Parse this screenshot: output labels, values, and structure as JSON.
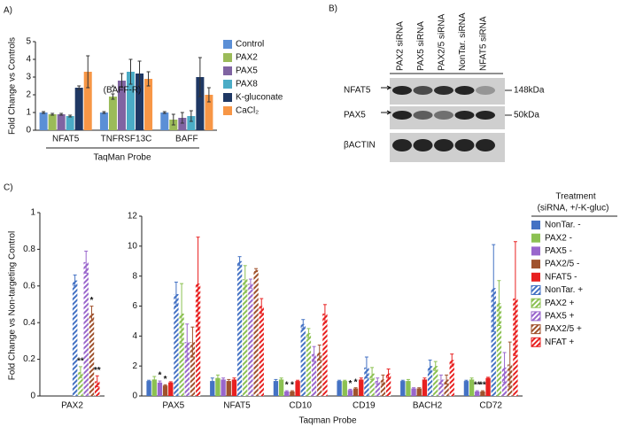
{
  "chart_data": [
    {
      "type": "bar",
      "label": "A)",
      "ylabel": "Fold Change vs Controls",
      "xlabel": "TaqMan Probe",
      "annotation": "(BAFF-R)",
      "categories": [
        "NFAT5",
        "TNFRSF13C",
        "BAFF"
      ],
      "ylim": [
        0,
        5
      ],
      "yticks": [
        0,
        1,
        2,
        3,
        4,
        5
      ],
      "series": [
        {
          "name": "Control",
          "color": "#5b8fd6",
          "values": [
            1.0,
            1.0,
            1.0
          ],
          "errors": [
            0.05,
            0.05,
            0.05
          ]
        },
        {
          "name": "PAX2",
          "color": "#9bbb59",
          "values": [
            0.9,
            1.9,
            0.6
          ],
          "errors": [
            0.05,
            0.15,
            0.3
          ],
          "stars": [
            null,
            "*",
            null
          ]
        },
        {
          "name": "PAX5",
          "color": "#8064a2",
          "values": [
            0.9,
            2.8,
            0.7
          ],
          "errors": [
            0.05,
            0.4,
            0.3
          ]
        },
        {
          "name": "PAX8",
          "color": "#4bacc6",
          "values": [
            0.8,
            3.3,
            0.8
          ],
          "errors": [
            0.05,
            0.7,
            0.3
          ]
        },
        {
          "name": "K-gluconate",
          "color": "#1f3864",
          "values": [
            2.4,
            3.2,
            3.0
          ],
          "errors": [
            0.1,
            0.7,
            1.1
          ]
        },
        {
          "name": "CaCl₂",
          "color": "#f79646",
          "values": [
            3.3,
            2.9,
            2.0
          ],
          "errors": [
            0.9,
            0.4,
            0.4
          ]
        }
      ]
    },
    {
      "type": "bar",
      "label": "C)",
      "ylabel": "Fold Change vs Non-targeting Control",
      "xlabel": "Taqman Probe",
      "legend_title": "Treatment",
      "legend_subtitle": "(siRNA, +/-K-gluc)",
      "series": [
        {
          "name": "NonTar. -",
          "color": "#4472c4",
          "hatched": false
        },
        {
          "name": "PAX2 -",
          "color": "#8cc152",
          "hatched": false
        },
        {
          "name": "PAX5 -",
          "color": "#9966cc",
          "hatched": false
        },
        {
          "name": "PAX2/5 -",
          "color": "#a0522d",
          "hatched": false
        },
        {
          "name": "NFAT5 -",
          "color": "#e82020",
          "hatched": false
        },
        {
          "name": "NonTar. +",
          "color": "#4472c4",
          "hatched": true
        },
        {
          "name": "PAX2 +",
          "color": "#8cc152",
          "hatched": true
        },
        {
          "name": "PAX5 +",
          "color": "#9966cc",
          "hatched": true
        },
        {
          "name": "PAX2/5 +",
          "color": "#a0522d",
          "hatched": true
        },
        {
          "name": "NFAT +",
          "color": "#e82020",
          "hatched": true
        }
      ],
      "panels": [
        {
          "categories": [
            "PAX2"
          ],
          "ylim": [
            0,
            1
          ],
          "yticks": [
            0,
            0.2,
            0.4,
            0.6,
            0.8,
            1
          ],
          "values": [
            [
              null
            ],
            [
              null
            ],
            [
              null
            ],
            [
              null
            ],
            [
              null
            ],
            [
              0.63
            ],
            [
              0.13
            ],
            [
              0.73
            ],
            [
              0.45
            ],
            [
              0.08
            ]
          ],
          "errors": [
            [
              null
            ],
            [
              null
            ],
            [
              null
            ],
            [
              null
            ],
            [
              null
            ],
            [
              0.03
            ],
            [
              0.03
            ],
            [
              0.06
            ],
            [
              0.04
            ],
            [
              0.03
            ]
          ],
          "stars": [
            [
              null
            ],
            [
              null
            ],
            [
              null
            ],
            [
              null
            ],
            [
              null
            ],
            [
              null
            ],
            [
              "**"
            ],
            [
              null
            ],
            [
              "*"
            ],
            [
              "**"
            ]
          ]
        },
        {
          "categories": [
            "PAX5",
            "NFAT5",
            "CD10",
            "CD19",
            "BACH2",
            "CD72"
          ],
          "ylim": [
            0,
            12
          ],
          "yticks": [
            0,
            2,
            4,
            6,
            8,
            10,
            12
          ],
          "values": [
            [
              1.0,
              1.0,
              1.0,
              1.0,
              1.0,
              1.0
            ],
            [
              1.1,
              1.2,
              1.1,
              1.0,
              1.0,
              1.1
            ],
            [
              0.9,
              1.1,
              0.3,
              0.4,
              0.5,
              0.3
            ],
            [
              0.7,
              1.0,
              0.3,
              0.5,
              0.5,
              0.3
            ],
            [
              0.9,
              1.1,
              1.0,
              1.1,
              1.1,
              1.2
            ],
            [
              6.8,
              9.0,
              4.8,
              1.9,
              2.0,
              7.2
            ],
            [
              5.5,
              7.8,
              4.2,
              1.5,
              2.0,
              6.2
            ],
            [
              3.6,
              7.5,
              2.8,
              1.0,
              1.1,
              1.9
            ],
            [
              3.6,
              8.4,
              2.9,
              1.1,
              1.1,
              2.1
            ],
            [
              7.5,
              6.0,
              5.5,
              1.5,
              2.4,
              6.5
            ]
          ],
          "errors": [
            [
              0.05,
              0.2,
              0.1,
              0.05,
              0.05,
              0.05
            ],
            [
              0.2,
              0.2,
              0.1,
              0.05,
              0.1,
              0.1
            ],
            [
              0.1,
              0.1,
              0.05,
              0.05,
              0.05,
              0.05
            ],
            [
              0.05,
              0.1,
              0.05,
              0.05,
              0.05,
              0.05
            ],
            [
              0.05,
              0.1,
              0.05,
              0.1,
              0.1,
              0.05
            ],
            [
              0.8,
              0.3,
              0.3,
              0.7,
              0.4,
              2.9
            ],
            [
              2.0,
              0.9,
              0.3,
              0.4,
              0.3,
              1.5
            ],
            [
              1.2,
              0.3,
              0.5,
              0.2,
              0.3,
              1.0
            ],
            [
              1.0,
              0.1,
              0.5,
              0.3,
              0.3,
              1.5
            ],
            [
              3.1,
              0.5,
              0.6,
              0.3,
              0.4,
              3.8
            ]
          ],
          "stars": [
            [
              null,
              null,
              null,
              null,
              null,
              null
            ],
            [
              null,
              null,
              null,
              null,
              null,
              null
            ],
            [
              "*",
              null,
              "*",
              "*",
              null,
              "**"
            ],
            [
              "*",
              null,
              "*",
              "*",
              null,
              "**"
            ],
            [
              null,
              null,
              null,
              null,
              null,
              null
            ],
            [
              null,
              null,
              null,
              null,
              null,
              null
            ],
            [
              null,
              null,
              null,
              null,
              null,
              null
            ],
            [
              null,
              null,
              null,
              null,
              null,
              null
            ],
            [
              null,
              null,
              null,
              null,
              null,
              null
            ],
            [
              null,
              null,
              null,
              null,
              null,
              null
            ]
          ]
        }
      ]
    }
  ],
  "blot": {
    "label": "B)",
    "lanes": [
      "PAX2 siRNA",
      "PAX5 siRNA",
      "PAX2/5 siRNA",
      "NonTar. siRNA",
      "NFAT5 siRNA"
    ],
    "rows": [
      {
        "name": "NFAT5",
        "marker": "148kDa"
      },
      {
        "name": "PAX5",
        "marker": "50kDa"
      },
      {
        "name": "βACTIN"
      }
    ]
  }
}
